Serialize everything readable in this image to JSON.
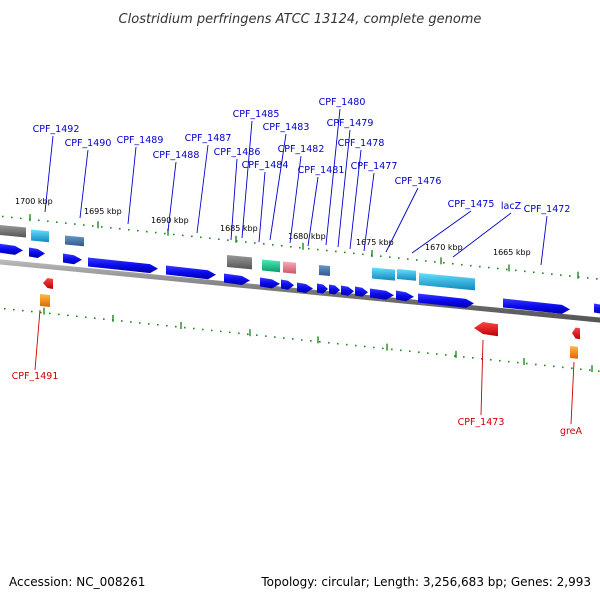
{
  "title": "Clostridium perfringens ATCC 13124, complete genome",
  "accession": "Accession: NC_008261",
  "summary": "Topology: circular; Length: 3,256,683 bp; Genes: 2,993",
  "scale_ticks": [
    {
      "label": "1700 kbp"
    },
    {
      "label": "1695 kbp"
    },
    {
      "label": "1690 kbp"
    },
    {
      "label": "1685 kbp"
    },
    {
      "label": "1680 kbp"
    },
    {
      "label": "1675 kbp"
    },
    {
      "label": "1670 kbp"
    },
    {
      "label": "1665 kbp"
    }
  ],
  "forward_labels": [
    "CPF_1492",
    "CPF_1490",
    "CPF_1489",
    "CPF_1488",
    "CPF_1487",
    "CPF_1486",
    "CPF_1485",
    "CPF_1484",
    "CPF_1483",
    "CPF_1482",
    "CPF_1481",
    "CPF_1480",
    "CPF_1479",
    "CPF_1478",
    "CPF_1477",
    "CPF_1476",
    "CPF_1475",
    "lacZ",
    "CPF_1472"
  ],
  "reverse_labels": [
    "CPF_1491",
    "CPF_1473",
    "greA"
  ],
  "colors": {
    "forward_label": "#0000cc",
    "reverse_label": "#cc0000",
    "cds_blue": "#0a0aee",
    "rrna_grey": "#777777",
    "trna_cyan": "#22aadd",
    "misc_green": "#22dd99",
    "misc_pink": "#ee8899",
    "misc_steel": "#4477aa",
    "reverse_red": "#ee0000",
    "reverse_orange": "#ff8800",
    "backbone": "#888888",
    "tick_green": "#228822"
  }
}
